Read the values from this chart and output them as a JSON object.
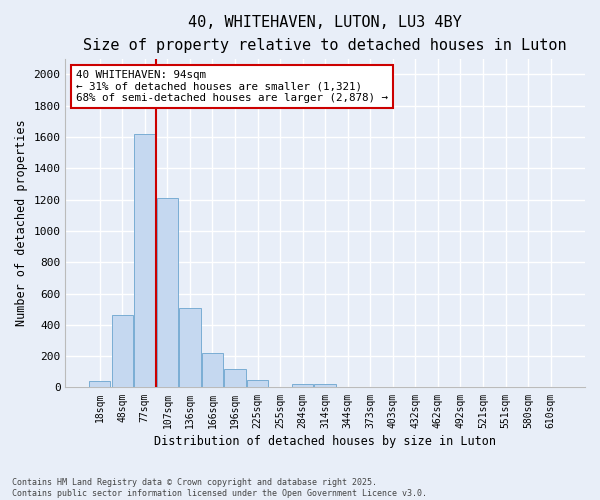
{
  "title": "40, WHITEHAVEN, LUTON, LU3 4BY",
  "subtitle": "Size of property relative to detached houses in Luton",
  "xlabel": "Distribution of detached houses by size in Luton",
  "ylabel": "Number of detached properties",
  "categories": [
    "18sqm",
    "48sqm",
    "77sqm",
    "107sqm",
    "136sqm",
    "166sqm",
    "196sqm",
    "225sqm",
    "255sqm",
    "284sqm",
    "314sqm",
    "344sqm",
    "373sqm",
    "403sqm",
    "432sqm",
    "462sqm",
    "492sqm",
    "521sqm",
    "551sqm",
    "580sqm",
    "610sqm"
  ],
  "values": [
    40,
    460,
    1620,
    1210,
    510,
    220,
    115,
    45,
    0,
    25,
    20,
    0,
    0,
    0,
    0,
    0,
    0,
    0,
    0,
    0,
    0
  ],
  "bar_color": "#c5d8f0",
  "bar_edge_color": "#7aadd4",
  "vline_color": "#cc0000",
  "vline_x": 2.5,
  "annotation_line1": "40 WHITEHAVEN: 94sqm",
  "annotation_line2": "← 31% of detached houses are smaller (1,321)",
  "annotation_line3": "68% of semi-detached houses are larger (2,878) →",
  "annotation_box_edge_color": "#cc0000",
  "ylim": [
    0,
    2100
  ],
  "yticks": [
    0,
    200,
    400,
    600,
    800,
    1000,
    1200,
    1400,
    1600,
    1800,
    2000
  ],
  "title_fontsize": 11,
  "subtitle_fontsize": 9,
  "bg_color": "#e8eef8",
  "plot_bg_color": "#e8eef8",
  "footer_line1": "Contains HM Land Registry data © Crown copyright and database right 2025.",
  "footer_line2": "Contains public sector information licensed under the Open Government Licence v3.0."
}
